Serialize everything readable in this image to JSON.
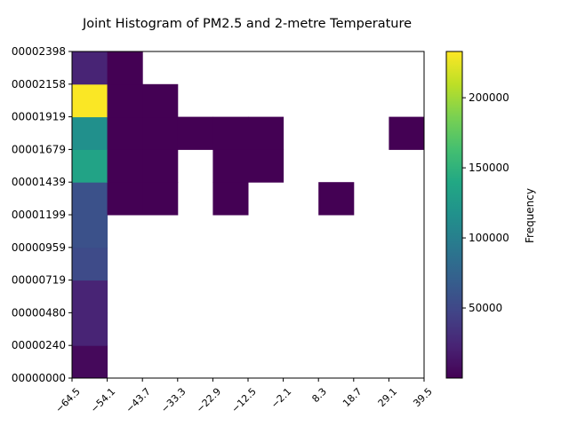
{
  "chart_data": {
    "type": "heatmap",
    "title": "Joint Histogram of PM2.5 and 2-metre Temperature",
    "xlabel": "",
    "ylabel": "",
    "x_edges": [
      -64.5,
      -54.1,
      -43.7,
      -33.3,
      -22.9,
      -12.5,
      -2.1,
      8.3,
      18.7,
      29.1,
      39.5
    ],
    "x_tick_labels": [
      "−64.5",
      "−54.1",
      "−43.7",
      "−33.3",
      "−22.9",
      "−12.5",
      "−2.1",
      "8.3",
      "18.7",
      "29.1",
      "39.5"
    ],
    "y_tick_labels": [
      "00000000",
      "00000240",
      "00000480",
      "00000719",
      "00000959",
      "00001199",
      "00001439",
      "00001679",
      "00001919",
      "00002158",
      "00002398"
    ],
    "colormap": "viridis",
    "empty_bins": "white",
    "colorbar": {
      "label": "Frequency",
      "range": [
        1,
        233000
      ],
      "ticks": [
        50000,
        100000,
        150000,
        200000
      ],
      "tick_labels": [
        "50000",
        "100000",
        "150000",
        "200000"
      ]
    },
    "counts_rows_bottom_to_top": [
      [
        5000,
        0,
        0,
        0,
        0,
        0,
        0,
        0,
        0,
        0
      ],
      [
        23000,
        0,
        0,
        0,
        0,
        0,
        0,
        0,
        0,
        0
      ],
      [
        23000,
        0,
        0,
        0,
        0,
        0,
        0,
        0,
        0,
        0
      ],
      [
        53000,
        0,
        0,
        0,
        0,
        0,
        0,
        0,
        0,
        0
      ],
      [
        58000,
        0,
        0,
        0,
        0,
        0,
        0,
        0,
        0,
        0
      ],
      [
        58000,
        1,
        1,
        0,
        1,
        0,
        0,
        1,
        0,
        0
      ],
      [
        135000,
        1,
        1,
        0,
        1,
        1,
        0,
        0,
        0,
        0
      ],
      [
        116000,
        1,
        1,
        1,
        1,
        1,
        0,
        0,
        0,
        1
      ],
      [
        232000,
        1,
        1,
        0,
        0,
        0,
        0,
        0,
        0,
        0
      ],
      [
        23000,
        1,
        0,
        0,
        0,
        0,
        0,
        0,
        0,
        0
      ]
    ]
  }
}
